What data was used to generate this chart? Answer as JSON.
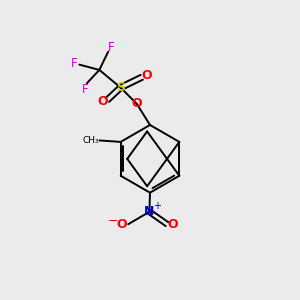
{
  "background_color": "#ebebeb",
  "bond_color": "#000000",
  "atom_colors": {
    "F": "#cc00cc",
    "S": "#cccc00",
    "O": "#ff0000",
    "N": "#0000cc",
    "C": "#000000"
  },
  "figsize": [
    3.0,
    3.0
  ],
  "dpi": 100
}
